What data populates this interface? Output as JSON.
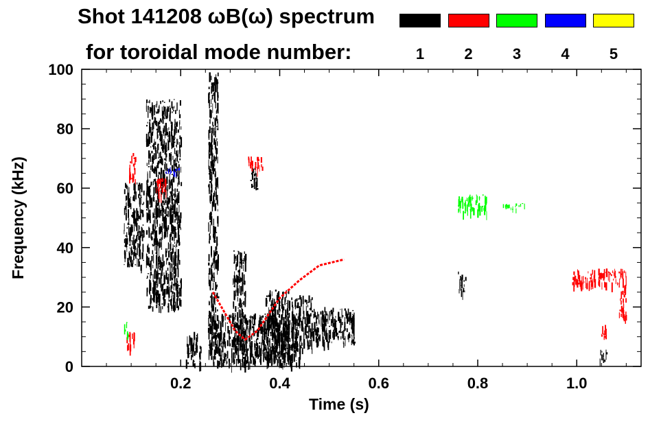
{
  "header": {
    "title_line1": "Shot 141208 ωB(ω) spectrum",
    "title_line2": "for toroidal mode number:"
  },
  "legend": {
    "entries": [
      {
        "label": "1",
        "color": "#000000"
      },
      {
        "label": "2",
        "color": "#ff0000"
      },
      {
        "label": "3",
        "color": "#00ff00"
      },
      {
        "label": "4",
        "color": "#0000ff"
      },
      {
        "label": "5",
        "color": "#ffff00"
      }
    ]
  },
  "chart_data": {
    "type": "heatmap",
    "title": "Shot 141208 ωB(ω) spectrum",
    "xlabel": "Time (s)",
    "ylabel": "Frequency (kHz)",
    "xlim": [
      0.0,
      1.13
    ],
    "ylim": [
      0,
      100
    ],
    "xticks": [
      "0.2",
      "0.4",
      "0.6",
      "0.8",
      "1.0"
    ],
    "xtick_values": [
      0.2,
      0.4,
      0.6,
      0.8,
      1.0
    ],
    "yticks": [
      "0",
      "20",
      "40",
      "60",
      "80",
      "100"
    ],
    "ytick_values": [
      0,
      20,
      40,
      60,
      80,
      100
    ],
    "grid": false,
    "legend_position": "top-right",
    "series": [
      {
        "name": "1",
        "color": "#000000",
        "regions": [
          {
            "t": [
              0.085,
              0.125
            ],
            "f": [
              34,
              62
            ]
          },
          {
            "t": [
              0.13,
              0.2
            ],
            "f": [
              20,
              90
            ]
          },
          {
            "t": [
              0.21,
              0.24
            ],
            "f": [
              1,
              12
            ]
          },
          {
            "t": [
              0.255,
              0.275
            ],
            "f": [
              5,
              99
            ]
          },
          {
            "t": [
              0.26,
              0.44
            ],
            "f": [
              1,
              18
            ]
          },
          {
            "t": [
              0.305,
              0.33
            ],
            "f": [
              2,
              40
            ]
          },
          {
            "t": [
              0.34,
              0.355
            ],
            "f": [
              60,
              67
            ]
          },
          {
            "t": [
              0.37,
              0.425
            ],
            "f": [
              3,
              26
            ]
          },
          {
            "t": [
              0.425,
              0.465
            ],
            "f": [
              6,
              24
            ]
          },
          {
            "t": [
              0.465,
              0.55
            ],
            "f": [
              8,
              20
            ]
          },
          {
            "t": [
              0.76,
              0.775
            ],
            "f": [
              25,
              32
            ]
          },
          {
            "t": [
              1.045,
              1.06
            ],
            "f": [
              2,
              6
            ]
          }
        ]
      },
      {
        "name": "2",
        "color": "#ff0000",
        "chirp": {
          "t": [
            0.265,
            0.31,
            0.33,
            0.355,
            0.4,
            0.44,
            0.48,
            0.53
          ],
          "f": [
            25,
            12,
            9,
            12,
            23,
            29,
            34,
            36
          ]
        },
        "regions": [
          {
            "t": [
              0.095,
              0.11
            ],
            "f": [
              63,
              72
            ]
          },
          {
            "t": [
              0.15,
              0.17
            ],
            "f": [
              58,
              64
            ]
          },
          {
            "t": [
              0.335,
              0.365
            ],
            "f": [
              67,
              71
            ]
          },
          {
            "t": [
              0.99,
              1.1
            ],
            "f": [
              28,
              33
            ]
          },
          {
            "t": [
              1.085,
              1.1
            ],
            "f": [
              17,
              28
            ]
          },
          {
            "t": [
              1.048,
              1.058
            ],
            "f": [
              9,
              15
            ]
          },
          {
            "t": [
              0.09,
              0.11
            ],
            "f": [
              7,
              12
            ]
          }
        ]
      },
      {
        "name": "3",
        "color": "#00ff00",
        "regions": [
          {
            "t": [
              0.76,
              0.82
            ],
            "f": [
              52,
              58
            ]
          },
          {
            "t": [
              0.85,
              0.895
            ],
            "f": [
              53,
              55
            ]
          },
          {
            "t": [
              0.085,
              0.095
            ],
            "f": [
              11,
              15
            ]
          }
        ]
      },
      {
        "name": "4",
        "color": "#0000ff",
        "regions": [
          {
            "t": [
              0.165,
              0.2
            ],
            "f": [
              65,
              67
            ]
          }
        ]
      },
      {
        "name": "5",
        "color": "#ffff00",
        "regions": []
      }
    ]
  }
}
